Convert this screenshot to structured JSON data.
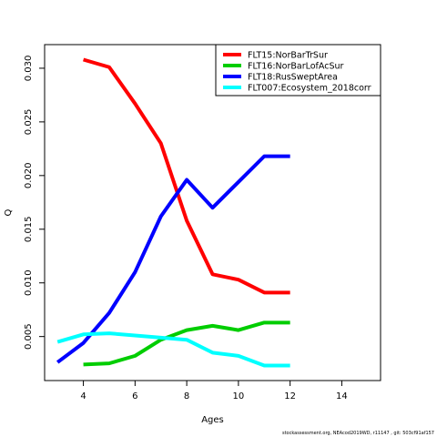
{
  "chart_data": {
    "type": "line",
    "xlabel": "Ages",
    "ylabel": "Q",
    "xlim": [
      2.5,
      15.5
    ],
    "ylim": [
      0.0009,
      0.0322
    ],
    "x_ticks": [
      4,
      6,
      8,
      10,
      12,
      14
    ],
    "y_ticks": [
      0.005,
      0.01,
      0.015,
      0.02,
      0.025,
      0.03
    ],
    "y_tick_labels": [
      "0.005",
      "0.010",
      "0.015",
      "0.020",
      "0.025",
      "0.030"
    ],
    "legend_position": "top-right",
    "grid": false,
    "series": [
      {
        "name": "FLT15:NorBarTrSur",
        "color": "#ff0000",
        "x": [
          4,
          5,
          6,
          7,
          8,
          9,
          10,
          11,
          12
        ],
        "values": [
          0.0308,
          0.0301,
          0.0267,
          0.023,
          0.0158,
          0.0108,
          0.0103,
          0.0091,
          0.0091
        ]
      },
      {
        "name": "FLT16:NorBarLofAcSur",
        "color": "#00cd00",
        "x": [
          4,
          5,
          6,
          7,
          8,
          9,
          10,
          11,
          12
        ],
        "values": [
          0.0024,
          0.0025,
          0.0032,
          0.0047,
          0.0056,
          0.006,
          0.0056,
          0.0063,
          0.0063
        ]
      },
      {
        "name": "FLT18:RusSweptArea",
        "color": "#0000ff",
        "x": [
          3,
          4,
          5,
          6,
          7,
          8,
          9,
          10,
          11,
          12
        ],
        "values": [
          0.0026,
          0.0044,
          0.0072,
          0.011,
          0.0162,
          0.0196,
          0.017,
          0.0194,
          0.0218,
          0.0218
        ]
      },
      {
        "name": "FLT007:Ecosystem_2018corr",
        "color": "#00ffff",
        "x": [
          3,
          4,
          5,
          6,
          7,
          8,
          9,
          10,
          11,
          12
        ],
        "values": [
          0.0045,
          0.0052,
          0.0053,
          0.0051,
          0.0049,
          0.0047,
          0.0035,
          0.0032,
          0.0023,
          0.0023
        ]
      }
    ]
  },
  "footer": {
    "text": "stockassessment.org, NEAcod2019WD, r11147 , git: 503cf91af157"
  }
}
